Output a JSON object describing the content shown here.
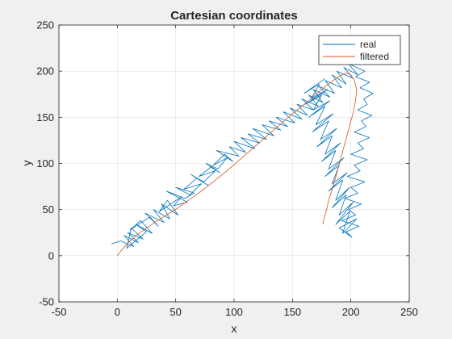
{
  "chart_data": {
    "type": "line",
    "title": "Cartesian coordinates",
    "xlabel": "x",
    "ylabel": "y",
    "xlim": [
      -50,
      250
    ],
    "ylim": [
      -50,
      250
    ],
    "xticks": [
      -50,
      0,
      50,
      100,
      150,
      200,
      250
    ],
    "yticks": [
      -50,
      0,
      50,
      100,
      150,
      200,
      250
    ],
    "grid": true,
    "legend_position": "top-right",
    "series": [
      {
        "name": "real",
        "color": "#0072bd",
        "x": [
          -5,
          3,
          14,
          6,
          18,
          9,
          22,
          12,
          8,
          25,
          16,
          30,
          20,
          11,
          28,
          35,
          24,
          40,
          31,
          45,
          38,
          52,
          43,
          36,
          55,
          48,
          60,
          42,
          58,
          66,
          50,
          62,
          72,
          57,
          68,
          78,
          63,
          74,
          84,
          70,
          80,
          88,
          76,
          86,
          94,
          82,
          92,
          99,
          85,
          104,
          96,
          110,
          100,
          118,
          106,
          122,
          112,
          128,
          116,
          134,
          124,
          140,
          130,
          146,
          136,
          152,
          142,
          158,
          148,
          163,
          154,
          168,
          158,
          172,
          164,
          176,
          168,
          182,
          172,
          186,
          178,
          192,
          184,
          196,
          188,
          202,
          194,
          206,
          198,
          212,
          204,
          216,
          208,
          219,
          211,
          214,
          206,
          218,
          209,
          213,
          203,
          216,
          206,
          211,
          200,
          214,
          203,
          208,
          197,
          212,
          200,
          206,
          195,
          209,
          198,
          204,
          192,
          207,
          196,
          201,
          190,
          205,
          193,
          199,
          187,
          202,
          190,
          196,
          184,
          199,
          187,
          193,
          181,
          197,
          184,
          190,
          178,
          194,
          181,
          187,
          175,
          191,
          178,
          184,
          171,
          188,
          174,
          181,
          167,
          185,
          170,
          178,
          164,
          182,
          168,
          175,
          161,
          180,
          166,
          173,
          160,
          178
        ],
        "y": [
          13,
          16,
          10,
          22,
          14,
          25,
          18,
          30,
          8,
          26,
          34,
          24,
          38,
          28,
          42,
          32,
          46,
          36,
          50,
          40,
          56,
          44,
          60,
          48,
          64,
          54,
          58,
          70,
          62,
          68,
          74,
          66,
          78,
          72,
          84,
          76,
          88,
          80,
          92,
          86,
          96,
          90,
          100,
          94,
          106,
          98,
          110,
          102,
          114,
          108,
          118,
          112,
          124,
          116,
          128,
          122,
          132,
          126,
          138,
          130,
          142,
          136,
          146,
          140,
          150,
          144,
          156,
          148,
          160,
          152,
          164,
          158,
          170,
          162,
          174,
          166,
          180,
          172,
          184,
          176,
          190,
          182,
          196,
          186,
          200,
          192,
          204,
          196,
          208,
          200,
          194,
          188,
          182,
          176,
          170,
          164,
          158,
          152,
          146,
          140,
          134,
          128,
          122,
          116,
          110,
          104,
          98,
          92,
          86,
          80,
          74,
          68,
          62,
          56,
          50,
          44,
          38,
          32,
          26,
          20,
          30,
          40,
          24,
          48,
          34,
          58,
          44,
          66,
          52,
          74,
          60,
          82,
          70,
          90,
          78,
          98,
          86,
          106,
          94,
          114,
          102,
          122,
          110,
          130,
          118,
          138,
          126,
          146,
          134,
          154,
          142,
          162,
          150,
          168,
          158,
          174,
          164,
          180,
          170,
          186,
          176,
          192
        ]
      },
      {
        "name": "filtered",
        "color": "#d95319",
        "x": [
          0,
          5,
          10,
          16,
          24,
          32,
          42,
          52,
          62,
          72,
          82,
          92,
          102,
          112,
          122,
          132,
          142,
          152,
          162,
          170,
          178,
          185,
          191,
          196,
          200,
          203,
          205,
          204,
          202,
          199,
          196,
          193,
          190,
          187,
          184,
          181,
          179,
          177,
          176
        ],
        "y": [
          0,
          8,
          15,
          22,
          29,
          36,
          44,
          52,
          61,
          70,
          80,
          90,
          101,
          112,
          123,
          134,
          145,
          156,
          166,
          175,
          183,
          190,
          195,
          198,
          196,
          190,
          180,
          168,
          155,
          141,
          127,
          113,
          99,
          85,
          72,
          60,
          49,
          40,
          34
        ]
      }
    ]
  }
}
